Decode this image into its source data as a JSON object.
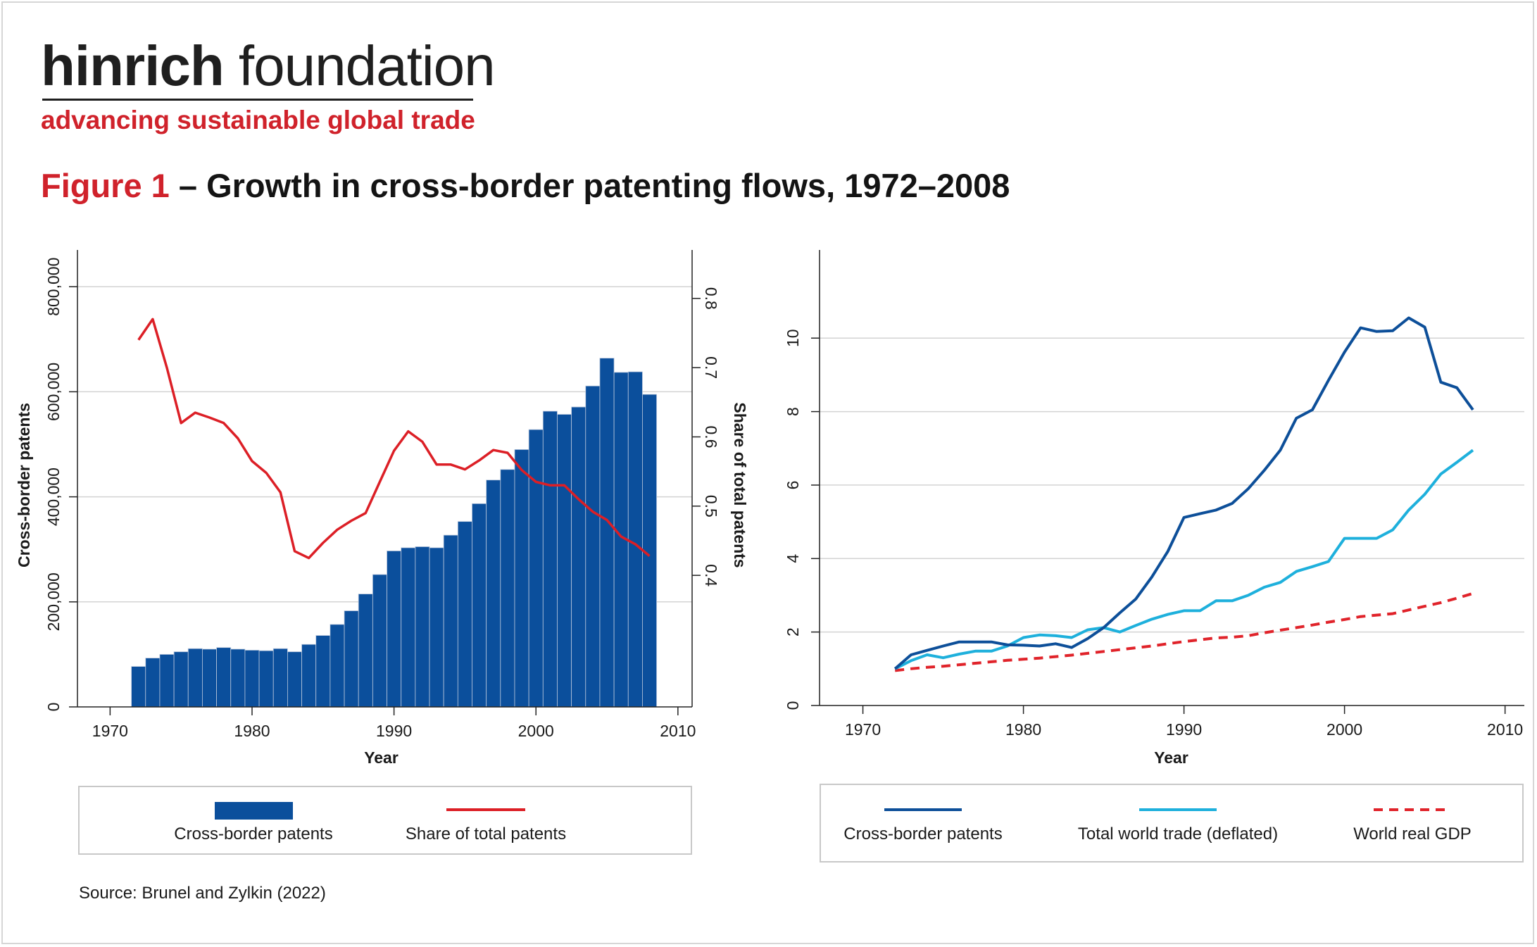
{
  "brand": {
    "name_bold": "hinrich",
    "name_light": " foundation",
    "tagline": "advancing sustainable global trade"
  },
  "figure": {
    "label": "Figure 1",
    "title": " – Growth in cross-border patenting flows, 1972–2008"
  },
  "source": "Source: Brunel and Zylkin (2022)",
  "colors": {
    "bar": "#0b4f9c",
    "share_line": "#dc1f26",
    "cross_border": "#0d4f99",
    "world_trade": "#1eb0dc",
    "gdp": "#e0232a",
    "grid": "#d3d3d3",
    "brand_red": "#d0222b"
  },
  "chart_data": [
    {
      "type": "bar",
      "secondary_type": "line",
      "xlabel": "Year",
      "ylabel": "Cross-border patents",
      "ylabel_right": "Share of total patents",
      "x_ticks": [
        "1970",
        "1980",
        "1990",
        "2000",
        "2010"
      ],
      "y_ticks": [
        "0",
        "200,000",
        "400,000",
        "600,000",
        "800,000"
      ],
      "y_right_ticks": [
        "0.4",
        "0.5",
        "0.6",
        "0.7",
        "0.8"
      ],
      "xlim": [
        1967.7,
        2011
      ],
      "ylim": [
        0,
        870000
      ],
      "y_right_lim": [
        0.21,
        0.87
      ],
      "grid": true,
      "legend_position": "bottom",
      "x": [
        1972,
        1973,
        1974,
        1975,
        1976,
        1977,
        1978,
        1979,
        1980,
        1981,
        1982,
        1983,
        1984,
        1985,
        1986,
        1987,
        1988,
        1989,
        1990,
        1991,
        1992,
        1993,
        1994,
        1995,
        1996,
        1997,
        1998,
        1999,
        2000,
        2001,
        2002,
        2003,
        2004,
        2005,
        2006,
        2007,
        2008
      ],
      "series": [
        {
          "name": "Cross-border patents",
          "kind": "bar",
          "axis": "left",
          "values": [
            77000,
            93000,
            100000,
            105000,
            111000,
            110000,
            113000,
            110000,
            108000,
            107000,
            111000,
            105000,
            119000,
            136000,
            157000,
            183000,
            215000,
            252000,
            297000,
            303000,
            305000,
            303000,
            327000,
            353000,
            387000,
            432000,
            452000,
            490000,
            528000,
            563000,
            557000,
            571000,
            611000,
            664000,
            637000,
            638000,
            595000
          ]
        },
        {
          "name": "Share of total patents",
          "kind": "line",
          "axis": "right",
          "values": [
            0.74,
            0.77,
            0.7,
            0.62,
            0.635,
            0.628,
            0.62,
            0.598,
            0.565,
            0.548,
            0.52,
            0.435,
            0.425,
            0.447,
            0.466,
            0.479,
            0.49,
            0.535,
            0.58,
            0.608,
            0.593,
            0.56,
            0.56,
            0.553,
            0.566,
            0.581,
            0.577,
            0.552,
            0.535,
            0.53,
            0.53,
            0.51,
            0.492,
            0.48,
            0.456,
            0.445,
            0.428
          ]
        }
      ]
    },
    {
      "type": "line",
      "xlabel": "Year",
      "ylabel": "",
      "x_ticks": [
        "1970",
        "1980",
        "1990",
        "2000",
        "2010"
      ],
      "y_ticks": [
        "0",
        "2",
        "4",
        "6",
        "8",
        "10"
      ],
      "xlim": [
        1967.3,
        2011.2
      ],
      "ylim": [
        0,
        12.4
      ],
      "grid": true,
      "legend_position": "bottom",
      "x": [
        1972,
        1973,
        1974,
        1975,
        1976,
        1977,
        1978,
        1979,
        1980,
        1981,
        1982,
        1983,
        1984,
        1985,
        1986,
        1987,
        1988,
        1989,
        1990,
        1991,
        1992,
        1993,
        1994,
        1995,
        1996,
        1997,
        1998,
        1999,
        2000,
        2001,
        2002,
        2003,
        2004,
        2005,
        2006,
        2007,
        2008
      ],
      "series": [
        {
          "name": "Cross-border patents",
          "style": "solid",
          "values": [
            1.0,
            1.38,
            1.5,
            1.62,
            1.73,
            1.73,
            1.73,
            1.65,
            1.64,
            1.62,
            1.68,
            1.58,
            1.82,
            2.12,
            2.52,
            2.9,
            3.5,
            4.2,
            5.12,
            5.22,
            5.32,
            5.5,
            5.9,
            6.4,
            6.95,
            7.82,
            8.05,
            8.85,
            9.62,
            10.28,
            10.18,
            10.2,
            10.55,
            10.3,
            8.8,
            8.65,
            8.05
          ]
        },
        {
          "name": "Total world trade (deflated)",
          "style": "solid",
          "values": [
            1.0,
            1.22,
            1.38,
            1.3,
            1.4,
            1.48,
            1.48,
            1.62,
            1.85,
            1.92,
            1.9,
            1.85,
            2.06,
            2.12,
            2.0,
            2.18,
            2.35,
            2.48,
            2.58,
            2.58,
            2.85,
            2.85,
            3.0,
            3.22,
            3.35,
            3.65,
            3.78,
            3.92,
            4.55,
            4.55,
            4.55,
            4.78,
            5.32,
            5.75,
            6.3,
            6.62,
            6.95
          ]
        },
        {
          "name": "World real GDP",
          "style": "dashed",
          "values": [
            0.95,
            1.0,
            1.04,
            1.07,
            1.11,
            1.15,
            1.19,
            1.23,
            1.26,
            1.29,
            1.33,
            1.37,
            1.42,
            1.47,
            1.52,
            1.57,
            1.62,
            1.68,
            1.74,
            1.79,
            1.84,
            1.86,
            1.9,
            1.98,
            2.05,
            2.12,
            2.19,
            2.27,
            2.34,
            2.42,
            2.46,
            2.5,
            2.6,
            2.7,
            2.8,
            2.92,
            3.05
          ]
        }
      ]
    }
  ]
}
